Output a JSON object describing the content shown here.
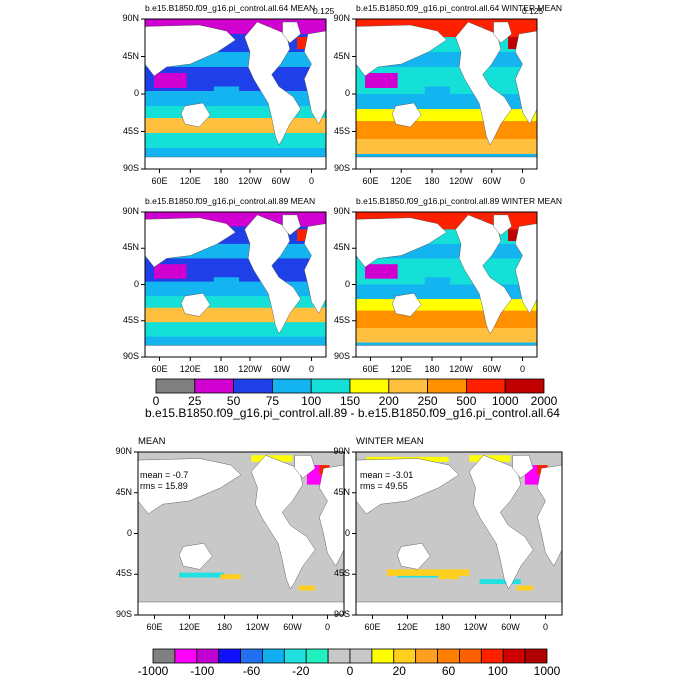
{
  "panels": [
    {
      "title": "b.e15.B1850.f09_g16.pi_control.all.64 MEAN",
      "corner": "0.125",
      "stats": null
    },
    {
      "title": "b.e15.B1850.f09_g16.pi_control.all.64 WINTER MEAN",
      "corner": "0.125",
      "stats": null
    },
    {
      "title": "b.e15.B1850.f09_g16.pi_control.all.89 MEAN",
      "corner": "",
      "stats": null
    },
    {
      "title": "b.e15.B1850.f09_g16.pi_control.all.89 WINTER MEAN",
      "corner": "",
      "stats": null
    },
    {
      "title": "MEAN",
      "corner": "",
      "stats": {
        "mean": "mean = -0.7",
        "rms": "rms = 15.89"
      }
    },
    {
      "title": "WINTER MEAN",
      "corner": "",
      "stats": {
        "mean": "mean = -3.01",
        "rms": "rms = 49.55"
      }
    }
  ],
  "lat_labels": [
    "90N",
    "45N",
    "0",
    "45S",
    "90S"
  ],
  "lon_labels": [
    "60E",
    "120E",
    "180",
    "120W",
    "60W",
    "0"
  ],
  "colorbar_top": {
    "labels": [
      "0",
      "25",
      "50",
      "75",
      "100",
      "150",
      "200",
      "250",
      "500",
      "1000",
      "2000"
    ],
    "colors": [
      "#808080",
      "#d000d0",
      "#1f3fe8",
      "#14b4f0",
      "#14e0d8",
      "#ffff00",
      "#ffc040",
      "#ff9000",
      "#ff2000",
      "#c00000"
    ],
    "title": "b.e15.B1850.f09_g16.pi_control.all.89 - b.e15.B1850.f09_g16.pi_control.all.64"
  },
  "colorbar_bottom": {
    "labels": [
      "-1000",
      "-100",
      "-60",
      "-20",
      "0",
      "20",
      "60",
      "100",
      "1000"
    ],
    "colors": [
      "#808080",
      "#ff00ff",
      "#c000d0",
      "#1010ff",
      "#2070f0",
      "#10b0f0",
      "#20e0e0",
      "#20f0c0",
      "#c8c8c8",
      "#c8c8c8",
      "#ffff00",
      "#ffd020",
      "#ffa020",
      "#ff8000",
      "#ff6000",
      "#ff2000",
      "#d00000",
      "#b00000"
    ]
  },
  "map_colors": {
    "land": "#ffffff",
    "diff_neutral": "#c8c8c8"
  }
}
